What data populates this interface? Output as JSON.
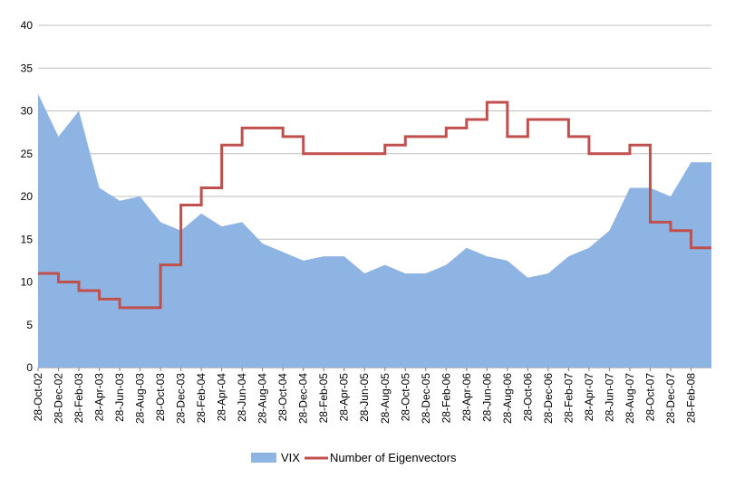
{
  "chart_data": {
    "type": "area",
    "ylim": [
      0,
      40
    ],
    "yticks": [
      0,
      5,
      10,
      15,
      20,
      25,
      30,
      35,
      40
    ],
    "grid": "horizontal",
    "legend_position": "bottom",
    "x": [
      "28-Oct-02",
      "28-Dec-02",
      "28-Feb-03",
      "28-Apr-03",
      "28-Jun-03",
      "28-Aug-03",
      "28-Oct-03",
      "28-Dec-03",
      "28-Feb-04",
      "28-Apr-04",
      "28-Jun-04",
      "28-Aug-04",
      "28-Oct-04",
      "28-Dec-04",
      "28-Feb-05",
      "28-Apr-05",
      "28-Jun-05",
      "28-Aug-05",
      "28-Oct-05",
      "28-Dec-05",
      "28-Feb-06",
      "28-Apr-06",
      "28-Jun-06",
      "28-Aug-06",
      "28-Oct-06",
      "28-Dec-06",
      "28-Feb-07",
      "28-Apr-07",
      "28-Jun-07",
      "28-Aug-07",
      "28-Oct-07",
      "28-Dec-07",
      "28-Feb-08"
    ],
    "series": [
      {
        "name": "VIX",
        "kind": "area",
        "color": "#8EB4E3",
        "values": [
          32,
          27,
          30,
          21,
          19.5,
          20,
          17,
          16,
          18,
          16.5,
          17,
          14.5,
          13.5,
          12.5,
          13,
          13,
          11,
          12,
          11,
          11,
          12,
          14,
          13,
          12.5,
          10.5,
          11,
          13,
          14,
          16,
          21,
          21,
          20,
          24
        ]
      },
      {
        "name": "Number of Eigenvectors",
        "kind": "line",
        "color": "#C0504D",
        "values": [
          11,
          10,
          9,
          8,
          7,
          7,
          12,
          19,
          21,
          26,
          28,
          28,
          27,
          25,
          25,
          25,
          25,
          26,
          27,
          27,
          28,
          29,
          31,
          27,
          29,
          29,
          27,
          25,
          25,
          26,
          17,
          16,
          14
        ]
      }
    ]
  }
}
